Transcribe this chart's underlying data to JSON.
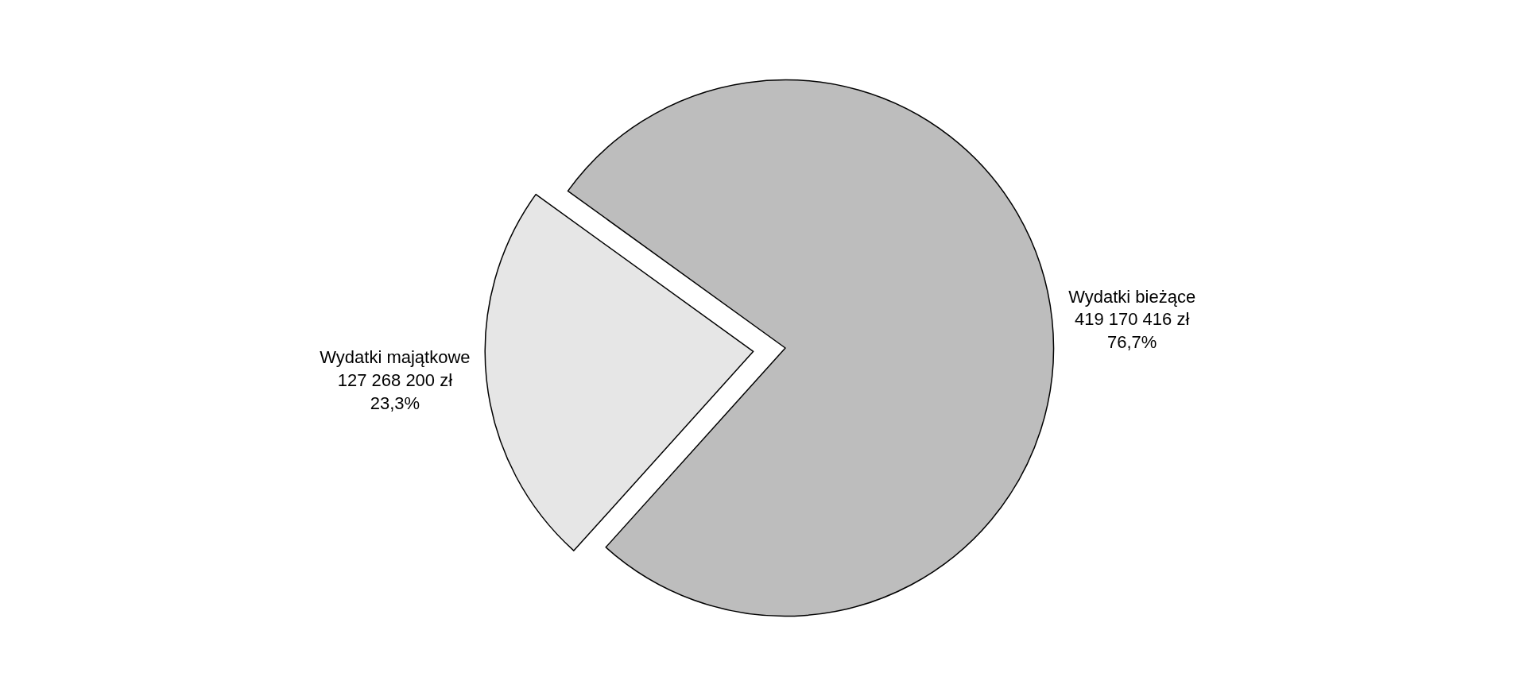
{
  "chart_data": {
    "type": "pie",
    "categories": [
      "Wydatki majątkowe",
      "Wydatki bieżące"
    ],
    "values": [
      127268200,
      419170416
    ],
    "value_labels": [
      "127 268 200 zł\n23,3%",
      "419 170 416 zł\n76,7%"
    ],
    "colors": [
      "#e6e6e6",
      "#bdbdbd"
    ],
    "legend": false
  }
}
